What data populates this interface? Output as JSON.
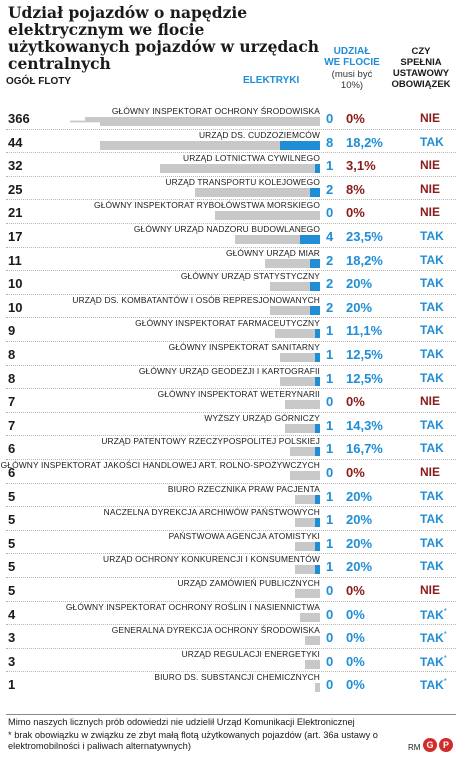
{
  "title": "Udział pojazdów o napędzie elektrycznym we flocie użytkowanych pojazdów w urzędach centralnych",
  "headers": {
    "total_fleet": "OGÓŁ FLOTY",
    "electric": "ELEKTRYKI",
    "share_line1": "UDZIAŁ",
    "share_line2": "WE FLOCIE",
    "share_sub": "(musi być 10%)",
    "meets_line1": "CZY",
    "meets_line2": "SPEŁNIA",
    "meets_line3": "USTAWOWY",
    "meets_line4": "OBOWIĄZEK"
  },
  "colors": {
    "electric": "#1f8ed6",
    "fleet": "#c8c8c8",
    "yes": "#1f8ed6",
    "no": "#8b1a1a"
  },
  "chart_data": {
    "type": "bar",
    "orientation": "horizontal",
    "title": "Udział pojazdów o napędzie elektrycznym we flocie użytkowanych pojazdów w urzędach centralnych",
    "series_order": [
      "total_fleet",
      "electric"
    ],
    "rows": [
      {
        "institution": "GŁÓWNY INSPEKTORAT OCHRONY ŚRODOWISKA",
        "total": 366,
        "electric": 0,
        "share": "0%",
        "meets": "NIE",
        "asterisk": false
      },
      {
        "institution": "URZĄD DS. CUDZOZIEMCÓW",
        "total": 44,
        "electric": 8,
        "share": "18,2%",
        "meets": "TAK",
        "asterisk": false
      },
      {
        "institution": "URZĄD LOTNICTWA CYWILNEGO",
        "total": 32,
        "electric": 1,
        "share": "3,1%",
        "meets": "NIE",
        "asterisk": false
      },
      {
        "institution": "URZĄD TRANSPORTU KOLEJOWEGO",
        "total": 25,
        "electric": 2,
        "share": "8%",
        "meets": "NIE",
        "asterisk": false
      },
      {
        "institution": "GŁÓWNY INSPEKTORAT RYBOŁÓWSTWA MORSKIEGO",
        "total": 21,
        "electric": 0,
        "share": "0%",
        "meets": "NIE",
        "asterisk": false
      },
      {
        "institution": "GŁÓWNY URZĄD NADZORU BUDOWLANEGO",
        "total": 17,
        "electric": 4,
        "share": "23,5%",
        "meets": "TAK",
        "asterisk": false
      },
      {
        "institution": "GŁÓWNY URZĄD MIAR",
        "total": 11,
        "electric": 2,
        "share": "18,2%",
        "meets": "TAK",
        "asterisk": false
      },
      {
        "institution": "GŁÓWNY URZĄD STATYSTYCZNY",
        "total": 10,
        "electric": 2,
        "share": "20%",
        "meets": "TAK",
        "asterisk": false
      },
      {
        "institution": "URZĄD DS. KOMBATANTÓW I OSÓB REPRESJONOWANYCH",
        "total": 10,
        "electric": 2,
        "share": "20%",
        "meets": "TAK",
        "asterisk": false
      },
      {
        "institution": "GŁÓWNY INSPEKTORAT FARMACEUTYCZNY",
        "total": 9,
        "electric": 1,
        "share": "11,1%",
        "meets": "TAK",
        "asterisk": false
      },
      {
        "institution": "GŁÓWNY INSPEKTORAT SANITARNY",
        "total": 8,
        "electric": 1,
        "share": "12,5%",
        "meets": "TAK",
        "asterisk": false
      },
      {
        "institution": "GŁÓWNY URZĄD GEODEZJI I KARTOGRAFII",
        "total": 8,
        "electric": 1,
        "share": "12,5%",
        "meets": "TAK",
        "asterisk": false
      },
      {
        "institution": "GŁÓWNY INSPEKTORAT WETERYNARII",
        "total": 7,
        "electric": 0,
        "share": "0%",
        "meets": "NIE",
        "asterisk": false
      },
      {
        "institution": "WYŻSZY URZĄD GÓRNICZY",
        "total": 7,
        "electric": 1,
        "share": "14,3%",
        "meets": "TAK",
        "asterisk": false
      },
      {
        "institution": "URZĄD PATENTOWY RZECZYPOSPOLITEJ POLSKIEJ",
        "total": 6,
        "electric": 1,
        "share": "16,7%",
        "meets": "TAK",
        "asterisk": false
      },
      {
        "institution": "GŁÓWNY INSPEKTORAT JAKOŚCI HANDLOWEJ ART. ROLNO-SPOŻYWCZYCH",
        "total": 6,
        "electric": 0,
        "share": "0%",
        "meets": "NIE",
        "asterisk": false
      },
      {
        "institution": "BIURO RZECZNIKA PRAW PACJENTA",
        "total": 5,
        "electric": 1,
        "share": "20%",
        "meets": "TAK",
        "asterisk": false
      },
      {
        "institution": "NACZELNA DYREKCJA ARCHIWÓW PAŃSTWOWYCH",
        "total": 5,
        "electric": 1,
        "share": "20%",
        "meets": "TAK",
        "asterisk": false
      },
      {
        "institution": "PAŃSTWOWA AGENCJA ATOMISTYKI",
        "total": 5,
        "electric": 1,
        "share": "20%",
        "meets": "TAK",
        "asterisk": false
      },
      {
        "institution": "URZĄD OCHRONY KONKURENCJI I KONSUMENTÓW",
        "total": 5,
        "electric": 1,
        "share": "20%",
        "meets": "TAK",
        "asterisk": false
      },
      {
        "institution": "URZĄD ZAMÓWIEŃ PUBLICZNYCH",
        "total": 5,
        "electric": 0,
        "share": "0%",
        "meets": "NIE",
        "asterisk": false
      },
      {
        "institution": "GŁÓWNY INSPEKTORAT OCHRONY ROŚLIN I NASIENNICTWA",
        "total": 4,
        "electric": 0,
        "share": "0%",
        "meets": "TAK",
        "asterisk": true
      },
      {
        "institution": "GENERALNA DYREKCJA OCHRONY ŚRODOWISKA",
        "total": 3,
        "electric": 0,
        "share": "0%",
        "meets": "TAK",
        "asterisk": true
      },
      {
        "institution": "URZĄD REGULACJI ENERGETYKI",
        "total": 3,
        "electric": 0,
        "share": "0%",
        "meets": "TAK",
        "asterisk": true
      },
      {
        "institution": "BIURO DS. SUBSTANCJI CHEMICZNYCH",
        "total": 1,
        "electric": 0,
        "share": "0%",
        "meets": "TAK",
        "asterisk": true
      }
    ]
  },
  "asterisk_mark": "*",
  "notes": {
    "line1": "Mimo naszych licznych prób odowiedzi nie udzielił Urząd Komunikacji Elektronicznej",
    "line2": "* brak obowiązku w związku ze zbyt małą flotą użytkowanych pojazdów (art. 36a ustawy o elektromobilności i paliwach alternatywnych)"
  },
  "credit": "RM",
  "logos": [
    "G",
    "P"
  ]
}
